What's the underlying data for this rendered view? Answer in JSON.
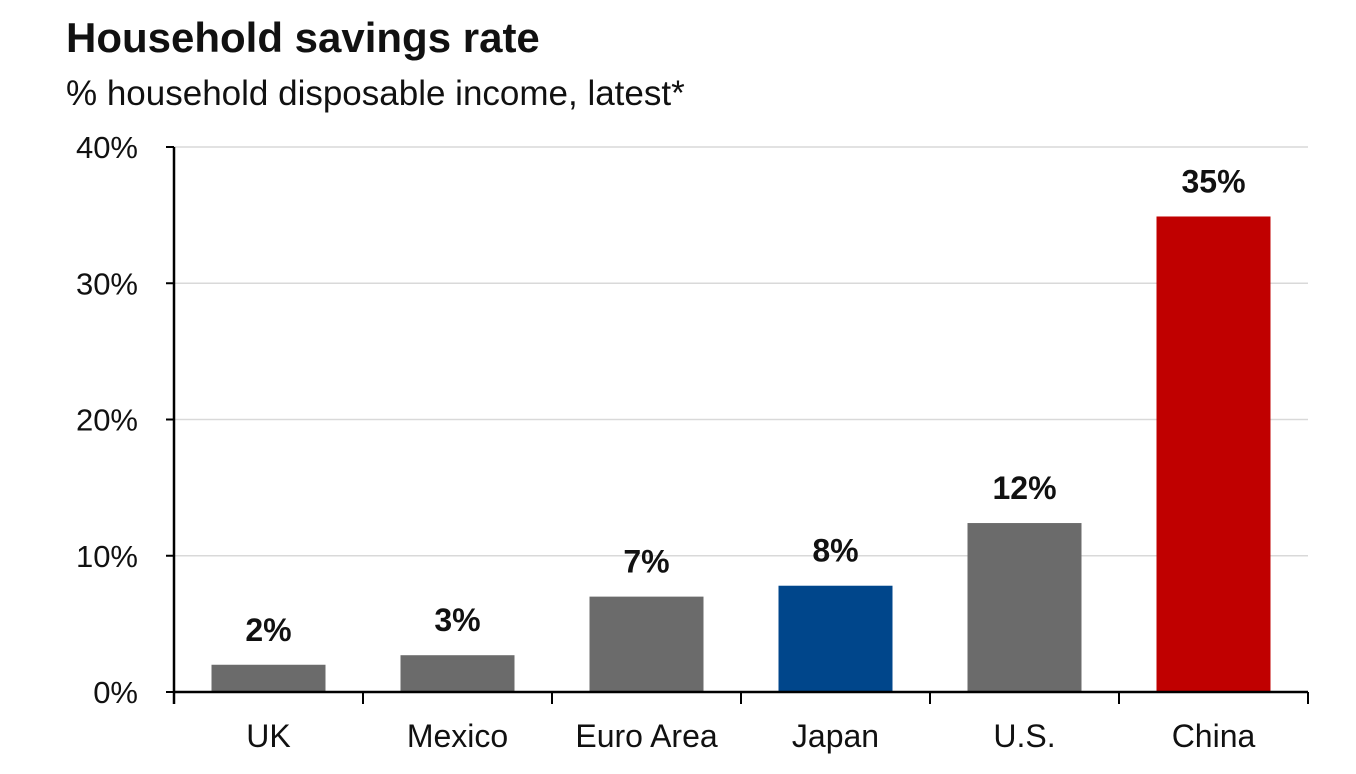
{
  "chart_data": {
    "type": "bar",
    "title": "Household savings rate",
    "subtitle": "% household disposable income, latest*",
    "categories": [
      "UK",
      "Mexico",
      "Euro Area",
      "Japan",
      "U.S.",
      "China"
    ],
    "values": [
      2.0,
      2.7,
      7.0,
      7.8,
      12.4,
      34.9
    ],
    "data_labels": [
      "2%",
      "3%",
      "7%",
      "8%",
      "12%",
      "35%"
    ],
    "bar_colors": [
      "#6b6b6b",
      "#6b6b6b",
      "#6b6b6b",
      "#00468b",
      "#6b6b6b",
      "#c00000"
    ],
    "ylim": [
      0,
      40
    ],
    "yticks": [
      0,
      10,
      20,
      30,
      40
    ],
    "ytick_labels": [
      "0%",
      "10%",
      "20%",
      "30%",
      "40%"
    ],
    "xlabel": "",
    "ylabel": "",
    "grid": true,
    "grid_color": "#d9d9d9",
    "axis_color": "#000000"
  }
}
